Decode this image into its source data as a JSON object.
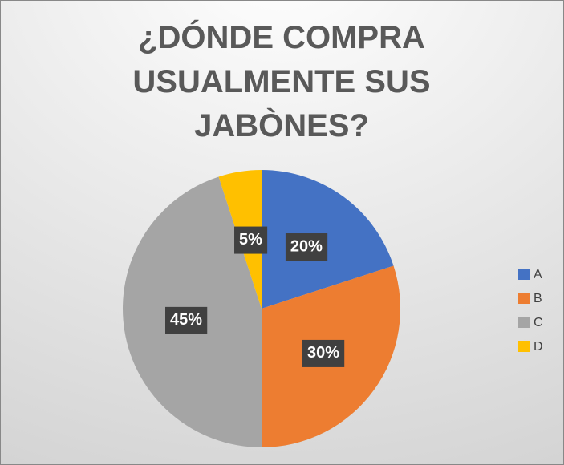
{
  "chart_data": {
    "type": "pie",
    "title": "¿DÓNDE COMPRA USUALMENTE SUS JABÒNES?",
    "categories": [
      "A",
      "B",
      "C",
      "D"
    ],
    "values": [
      20,
      30,
      45,
      5
    ],
    "value_labels": [
      "20%",
      "30%",
      "45%",
      "5%"
    ],
    "colors": [
      "#4472c4",
      "#ed7d31",
      "#a5a5a5",
      "#ffc000"
    ],
    "legend": "right"
  }
}
